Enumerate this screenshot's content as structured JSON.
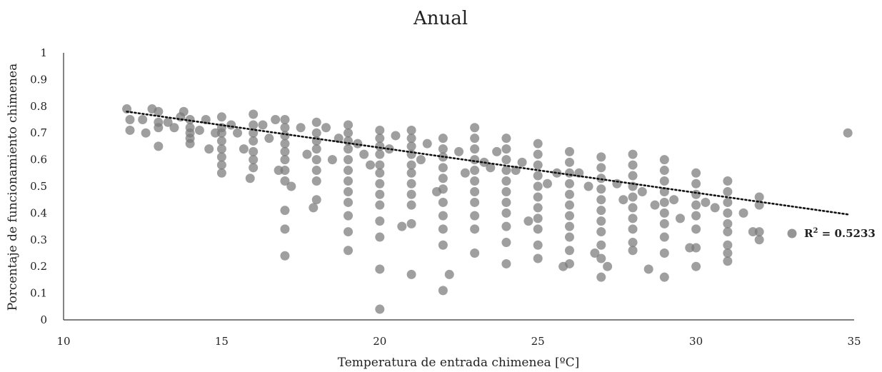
{
  "chart_data": {
    "type": "scatter",
    "title": "Anual",
    "xlabel": "Temperatura de entrada chimenea [ºC]",
    "ylabel": "Porcentaje de funcionamiento chimenea",
    "xlim": [
      10,
      35
    ],
    "ylim": [
      0,
      1
    ],
    "xticks": [
      "10",
      "15",
      "20",
      "25",
      "30",
      "35"
    ],
    "yticks": [
      "0",
      "0.1",
      "0.2",
      "0.3",
      "0.4",
      "0.5",
      "0.6",
      "0.7",
      "0.8",
      "0.9",
      "1"
    ],
    "grid": false,
    "colors": {
      "point": "#7a7a7a",
      "trendline": "#111111",
      "axis": "#333333"
    },
    "trendline": {
      "type": "linear",
      "x": [
        12,
        34.8
      ],
      "y": [
        0.78,
        0.395
      ],
      "style": "dotted"
    },
    "legend": {
      "marker": "circle",
      "r2_prefix": "R",
      "r2_exp": "2",
      "r2_value": " = 0.5233",
      "placement": "right"
    },
    "series": [
      {
        "points": [
          [
            12,
            0.79
          ],
          [
            12.1,
            0.75
          ],
          [
            12.1,
            0.71
          ],
          [
            12.5,
            0.75
          ],
          [
            12.6,
            0.7
          ],
          [
            12.8,
            0.79
          ],
          [
            13,
            0.78
          ],
          [
            13,
            0.74
          ],
          [
            13,
            0.72
          ],
          [
            13,
            0.65
          ],
          [
            13.3,
            0.74
          ],
          [
            13.5,
            0.72
          ],
          [
            13.7,
            0.76
          ],
          [
            13.8,
            0.78
          ],
          [
            14,
            0.75
          ],
          [
            14,
            0.72
          ],
          [
            14,
            0.7
          ],
          [
            14,
            0.68
          ],
          [
            14,
            0.66
          ],
          [
            14.3,
            0.71
          ],
          [
            14.5,
            0.75
          ],
          [
            14.6,
            0.64
          ],
          [
            14.8,
            0.7
          ],
          [
            15,
            0.76
          ],
          [
            15,
            0.72
          ],
          [
            15,
            0.7
          ],
          [
            15,
            0.67
          ],
          [
            15,
            0.64
          ],
          [
            15,
            0.61
          ],
          [
            15,
            0.58
          ],
          [
            15,
            0.55
          ],
          [
            15.3,
            0.73
          ],
          [
            15.5,
            0.7
          ],
          [
            15.7,
            0.64
          ],
          [
            15.9,
            0.53
          ],
          [
            16,
            0.77
          ],
          [
            16,
            0.73
          ],
          [
            16,
            0.7
          ],
          [
            16,
            0.67
          ],
          [
            16,
            0.63
          ],
          [
            16,
            0.6
          ],
          [
            16,
            0.57
          ],
          [
            16.3,
            0.73
          ],
          [
            16.5,
            0.68
          ],
          [
            16.7,
            0.75
          ],
          [
            16.8,
            0.56
          ],
          [
            17,
            0.75
          ],
          [
            17,
            0.72
          ],
          [
            17,
            0.69
          ],
          [
            17,
            0.66
          ],
          [
            17,
            0.63
          ],
          [
            17,
            0.6
          ],
          [
            17,
            0.56
          ],
          [
            17,
            0.52
          ],
          [
            17,
            0.41
          ],
          [
            17,
            0.34
          ],
          [
            17,
            0.24
          ],
          [
            17.2,
            0.5
          ],
          [
            17.5,
            0.72
          ],
          [
            17.7,
            0.62
          ],
          [
            17.9,
            0.42
          ],
          [
            18,
            0.74
          ],
          [
            18,
            0.7
          ],
          [
            18,
            0.67
          ],
          [
            18,
            0.64
          ],
          [
            18,
            0.6
          ],
          [
            18,
            0.56
          ],
          [
            18,
            0.52
          ],
          [
            18,
            0.45
          ],
          [
            18.3,
            0.72
          ],
          [
            18.5,
            0.6
          ],
          [
            18.7,
            0.68
          ],
          [
            19,
            0.73
          ],
          [
            19,
            0.7
          ],
          [
            19,
            0.67
          ],
          [
            19,
            0.64
          ],
          [
            19,
            0.6
          ],
          [
            19,
            0.56
          ],
          [
            19,
            0.52
          ],
          [
            19,
            0.48
          ],
          [
            19,
            0.44
          ],
          [
            19,
            0.39
          ],
          [
            19,
            0.33
          ],
          [
            19,
            0.26
          ],
          [
            19.3,
            0.66
          ],
          [
            19.5,
            0.62
          ],
          [
            19.7,
            0.58
          ],
          [
            20,
            0.71
          ],
          [
            20,
            0.68
          ],
          [
            20,
            0.65
          ],
          [
            20,
            0.62
          ],
          [
            20,
            0.58
          ],
          [
            20,
            0.55
          ],
          [
            20,
            0.51
          ],
          [
            20,
            0.47
          ],
          [
            20,
            0.43
          ],
          [
            20,
            0.37
          ],
          [
            20,
            0.31
          ],
          [
            20,
            0.19
          ],
          [
            20,
            0.04
          ],
          [
            20.3,
            0.64
          ],
          [
            20.5,
            0.69
          ],
          [
            20.7,
            0.35
          ],
          [
            21,
            0.71
          ],
          [
            21,
            0.68
          ],
          [
            21,
            0.65
          ],
          [
            21,
            0.62
          ],
          [
            21,
            0.58
          ],
          [
            21,
            0.55
          ],
          [
            21,
            0.51
          ],
          [
            21,
            0.47
          ],
          [
            21,
            0.43
          ],
          [
            21,
            0.36
          ],
          [
            21,
            0.17
          ],
          [
            21.3,
            0.6
          ],
          [
            21.5,
            0.66
          ],
          [
            21.8,
            0.48
          ],
          [
            22,
            0.68
          ],
          [
            22,
            0.64
          ],
          [
            22,
            0.61
          ],
          [
            22,
            0.57
          ],
          [
            22,
            0.53
          ],
          [
            22,
            0.49
          ],
          [
            22,
            0.44
          ],
          [
            22,
            0.39
          ],
          [
            22,
            0.34
          ],
          [
            22,
            0.28
          ],
          [
            22,
            0.11
          ],
          [
            22.2,
            0.17
          ],
          [
            22.5,
            0.63
          ],
          [
            22.7,
            0.55
          ],
          [
            23,
            0.72
          ],
          [
            23,
            0.68
          ],
          [
            23,
            0.64
          ],
          [
            23,
            0.6
          ],
          [
            23,
            0.56
          ],
          [
            23,
            0.52
          ],
          [
            23,
            0.48
          ],
          [
            23,
            0.44
          ],
          [
            23,
            0.39
          ],
          [
            23,
            0.34
          ],
          [
            23,
            0.25
          ],
          [
            23.3,
            0.59
          ],
          [
            23.5,
            0.57
          ],
          [
            23.7,
            0.63
          ],
          [
            24,
            0.68
          ],
          [
            24,
            0.64
          ],
          [
            24,
            0.6
          ],
          [
            24,
            0.56
          ],
          [
            24,
            0.52
          ],
          [
            24,
            0.48
          ],
          [
            24,
            0.44
          ],
          [
            24,
            0.4
          ],
          [
            24,
            0.35
          ],
          [
            24,
            0.29
          ],
          [
            24,
            0.21
          ],
          [
            24.3,
            0.56
          ],
          [
            24.5,
            0.59
          ],
          [
            24.7,
            0.37
          ],
          [
            25,
            0.66
          ],
          [
            25,
            0.62
          ],
          [
            25,
            0.58
          ],
          [
            25,
            0.54
          ],
          [
            25,
            0.5
          ],
          [
            25,
            0.46
          ],
          [
            25,
            0.42
          ],
          [
            25,
            0.38
          ],
          [
            25,
            0.34
          ],
          [
            25,
            0.28
          ],
          [
            25,
            0.23
          ],
          [
            25.3,
            0.51
          ],
          [
            25.6,
            0.55
          ],
          [
            25.8,
            0.2
          ],
          [
            26,
            0.63
          ],
          [
            26,
            0.59
          ],
          [
            26,
            0.55
          ],
          [
            26,
            0.51
          ],
          [
            26,
            0.47
          ],
          [
            26,
            0.43
          ],
          [
            26,
            0.39
          ],
          [
            26,
            0.35
          ],
          [
            26,
            0.31
          ],
          [
            26,
            0.26
          ],
          [
            26,
            0.21
          ],
          [
            26.3,
            0.55
          ],
          [
            26.6,
            0.5
          ],
          [
            26.8,
            0.25
          ],
          [
            27,
            0.61
          ],
          [
            27,
            0.57
          ],
          [
            27,
            0.53
          ],
          [
            27,
            0.49
          ],
          [
            27,
            0.45
          ],
          [
            27,
            0.41
          ],
          [
            27,
            0.37
          ],
          [
            27,
            0.33
          ],
          [
            27,
            0.28
          ],
          [
            27,
            0.23
          ],
          [
            27,
            0.16
          ],
          [
            27.2,
            0.2
          ],
          [
            27.5,
            0.51
          ],
          [
            27.7,
            0.45
          ],
          [
            28,
            0.62
          ],
          [
            28,
            0.58
          ],
          [
            28,
            0.54
          ],
          [
            28,
            0.5
          ],
          [
            28,
            0.46
          ],
          [
            28,
            0.42
          ],
          [
            28,
            0.38
          ],
          [
            28,
            0.34
          ],
          [
            28,
            0.29
          ],
          [
            28,
            0.26
          ],
          [
            28.3,
            0.48
          ],
          [
            28.5,
            0.19
          ],
          [
            28.7,
            0.43
          ],
          [
            29,
            0.6
          ],
          [
            29,
            0.56
          ],
          [
            29,
            0.52
          ],
          [
            29,
            0.48
          ],
          [
            29,
            0.44
          ],
          [
            29,
            0.4
          ],
          [
            29,
            0.36
          ],
          [
            29,
            0.31
          ],
          [
            29,
            0.25
          ],
          [
            29,
            0.16
          ],
          [
            29.3,
            0.45
          ],
          [
            29.5,
            0.38
          ],
          [
            29.8,
            0.27
          ],
          [
            30,
            0.55
          ],
          [
            30,
            0.51
          ],
          [
            30,
            0.47
          ],
          [
            30,
            0.43
          ],
          [
            30,
            0.39
          ],
          [
            30,
            0.34
          ],
          [
            30,
            0.27
          ],
          [
            30,
            0.2
          ],
          [
            30.3,
            0.44
          ],
          [
            30.6,
            0.42
          ],
          [
            31,
            0.52
          ],
          [
            31,
            0.48
          ],
          [
            31,
            0.44
          ],
          [
            31,
            0.4
          ],
          [
            31,
            0.36
          ],
          [
            31,
            0.33
          ],
          [
            31,
            0.28
          ],
          [
            31,
            0.25
          ],
          [
            31,
            0.22
          ],
          [
            31.5,
            0.4
          ],
          [
            32,
            0.46
          ],
          [
            32,
            0.43
          ],
          [
            32,
            0.33
          ],
          [
            32,
            0.3
          ],
          [
            31.8,
            0.33
          ],
          [
            34.8,
            0.7
          ]
        ]
      }
    ]
  }
}
